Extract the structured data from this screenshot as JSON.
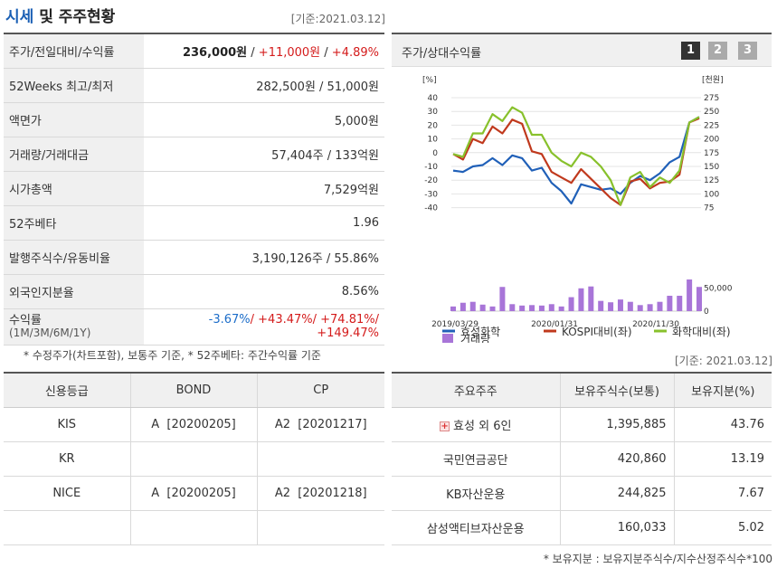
{
  "header": {
    "title_blue": "시세",
    "title_rest": " 및 주주현황",
    "basis": "[기준:2021.03.12]"
  },
  "quote": {
    "price_label": "주가/전일대비/수익률",
    "price": "236,000원",
    "sep": " / ",
    "change": "+11,000원",
    "rate": "+4.89%",
    "rows": [
      {
        "label": "52Weeks 최고/최저",
        "value": "282,500원 / 51,000원"
      },
      {
        "label": "액면가",
        "value": "5,000원"
      },
      {
        "label": "거래량/거래대금",
        "value": "57,404주 / 133억원"
      },
      {
        "label": "시가총액",
        "value": "7,529억원"
      },
      {
        "label": "52주베타",
        "value": "1.96"
      },
      {
        "label": "발행주식수/유동비율",
        "value": "3,190,126주 / 55.86%"
      },
      {
        "label": "외국인지분율",
        "value": "8.56%"
      }
    ],
    "returns_label": "수익률",
    "returns_sub": "(1M/3M/6M/1Y)",
    "ret_1m": "-3.67%",
    "ret_3m": "+43.47%",
    "ret_6m": "+74.81%",
    "ret_1y": "+149.47%",
    "slash": "/ ",
    "note": "* 수정주가(차트포함), 보통주 기준, * 52주베타: 주간수익률 기준"
  },
  "chart_panel": {
    "title": "주가/상대수익률",
    "pages": [
      "1",
      "2",
      "3"
    ]
  },
  "chart_data": {
    "type": "line",
    "left_unit": "[%]",
    "right_unit": "[천원]",
    "left_ticks": [
      "40",
      "30",
      "20",
      "10",
      "0",
      "-10",
      "-20",
      "-30",
      "-40"
    ],
    "right_ticks": [
      "275",
      "250",
      "225",
      "200",
      "175",
      "150",
      "125",
      "100",
      "75"
    ],
    "volume_ticks": [
      "50,000",
      "0"
    ],
    "x_labels": [
      "2019/03/29",
      "2020/01/31",
      "2020/11/30"
    ],
    "ylim": [
      -40,
      40
    ],
    "series": [
      {
        "name": "효성화학",
        "color": "#2060b8",
        "values": [
          -13,
          -14,
          -10,
          -9,
          -4,
          -9,
          -2,
          -4,
          -13,
          -11,
          -22,
          -28,
          -37,
          -23,
          -25,
          -27,
          -26,
          -30,
          -22,
          -17,
          -20,
          -15,
          -7,
          -3,
          22,
          26
        ]
      },
      {
        "name": "KOSPI대비(좌)",
        "color": "#c0391d",
        "values": [
          -1,
          -5,
          10,
          7,
          19,
          14,
          24,
          21,
          1,
          -1,
          -14,
          -18,
          -22,
          -12,
          -19,
          -26,
          -33,
          -38,
          -21,
          -19,
          -26,
          -22,
          -21,
          -16,
          22,
          25
        ]
      },
      {
        "name": "화학대비(좌)",
        "color": "#88c12c",
        "values": [
          -1,
          -3,
          14,
          14,
          28,
          23,
          33,
          29,
          13,
          13,
          0,
          -6,
          -10,
          0,
          -3,
          -10,
          -20,
          -38,
          -18,
          -14,
          -25,
          -18,
          -22,
          -13,
          22,
          26
        ]
      }
    ],
    "volume": {
      "name": "거래량",
      "color": "#a875d8",
      "values": [
        10,
        18,
        20,
        14,
        10,
        52,
        15,
        12,
        13,
        12,
        15,
        10,
        30,
        49,
        53,
        22,
        19,
        25,
        20,
        13,
        15,
        20,
        33,
        33,
        68,
        52
      ]
    }
  },
  "basis_mid": "[기준: 2021.03.12]",
  "credit": {
    "headers": [
      "신용등급",
      "BOND",
      "CP"
    ],
    "rows": [
      {
        "agency": "KIS",
        "bond": "A  [20200205]",
        "cp": "A2  [20201217]"
      },
      {
        "agency": "KR",
        "bond": "",
        "cp": ""
      },
      {
        "agency": "NICE",
        "bond": "A  [20200205]",
        "cp": "A2  [20201218]"
      },
      {
        "agency": "",
        "bond": "",
        "cp": ""
      }
    ]
  },
  "holders": {
    "headers": [
      "주요주주",
      "보유주식수(보통)",
      "보유지분(%)"
    ],
    "rows": [
      {
        "name": "효성 외 6인",
        "shares": "1,395,885",
        "pct": "43.76"
      },
      {
        "name": "국민연금공단",
        "shares": "420,860",
        "pct": "13.19"
      },
      {
        "name": "KB자산운용",
        "shares": "244,825",
        "pct": "7.67"
      },
      {
        "name": "삼성액티브자산운용",
        "shares": "160,033",
        "pct": "5.02"
      }
    ],
    "expand_icon": "plus-icon",
    "note": "* 보유지분 : 보유지분주식수/지수산정주식수*100"
  }
}
